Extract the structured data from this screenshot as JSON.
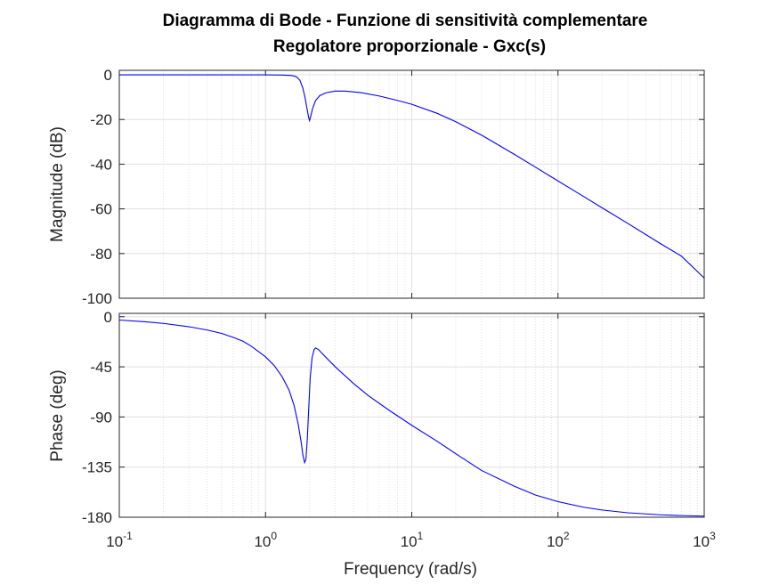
{
  "chart_data": {
    "type": "line",
    "title_line1": "Diagramma di Bode - Funzione di sensitività complementare",
    "title_line2": "Regolatore proporzionale - Gxc(s)",
    "xlabel": "Frequency  (rad/s)",
    "x_scale": "log",
    "xlim": [
      0.1,
      1000
    ],
    "x_ticks": [
      {
        "base": "10",
        "exp": "-1",
        "value": 0.1
      },
      {
        "base": "10",
        "exp": "0",
        "value": 1
      },
      {
        "base": "10",
        "exp": "1",
        "value": 10
      },
      {
        "base": "10",
        "exp": "2",
        "value": 100
      },
      {
        "base": "10",
        "exp": "3",
        "value": 1000
      }
    ],
    "grid": true,
    "line_color": "#0000ff",
    "magnitude": {
      "ylabel": "Magnitude (dB)",
      "ylim": [
        -100,
        2
      ],
      "y_ticks": [
        "0",
        "-20",
        "-40",
        "-60",
        "-80",
        "-100"
      ],
      "y_tick_values": [
        0,
        -20,
        -40,
        -60,
        -80,
        -100
      ],
      "points": [
        [
          0.1,
          0
        ],
        [
          0.5,
          0
        ],
        [
          1.0,
          0
        ],
        [
          1.3,
          -0.1
        ],
        [
          1.5,
          -0.3
        ],
        [
          1.62,
          -0.8
        ],
        [
          1.72,
          -2.5
        ],
        [
          1.8,
          -6
        ],
        [
          1.86,
          -10
        ],
        [
          1.92,
          -15
        ],
        [
          1.97,
          -19
        ],
        [
          2.0,
          -20.5
        ],
        [
          2.03,
          -19
        ],
        [
          2.1,
          -15
        ],
        [
          2.2,
          -11.5
        ],
        [
          2.35,
          -9.3
        ],
        [
          2.6,
          -8
        ],
        [
          3.0,
          -7.3
        ],
        [
          3.5,
          -7.3
        ],
        [
          4.5,
          -8
        ],
        [
          6.0,
          -9.5
        ],
        [
          8.0,
          -11.5
        ],
        [
          10,
          -13.2
        ],
        [
          15,
          -17.3
        ],
        [
          20,
          -21
        ],
        [
          30,
          -27
        ],
        [
          50,
          -35.5
        ],
        [
          70,
          -41.3
        ],
        [
          100,
          -47.5
        ],
        [
          150,
          -54.5
        ],
        [
          200,
          -59.5
        ],
        [
          300,
          -66.5
        ],
        [
          500,
          -75.5
        ],
        [
          700,
          -81.2
        ],
        [
          1000,
          -91
        ]
      ]
    },
    "phase": {
      "ylabel": "Phase (deg)",
      "ylim": [
        -180,
        3
      ],
      "y_ticks": [
        "0",
        "-45",
        "-90",
        "-135",
        "-180"
      ],
      "y_tick_values": [
        0,
        -45,
        -90,
        -135,
        -180
      ],
      "points": [
        [
          0.1,
          -3
        ],
        [
          0.15,
          -4.5
        ],
        [
          0.2,
          -6
        ],
        [
          0.3,
          -9
        ],
        [
          0.4,
          -12
        ],
        [
          0.5,
          -15
        ],
        [
          0.6,
          -18.5
        ],
        [
          0.7,
          -22
        ],
        [
          0.8,
          -26.5
        ],
        [
          0.9,
          -31.5
        ],
        [
          1.0,
          -36
        ],
        [
          1.15,
          -44
        ],
        [
          1.3,
          -54
        ],
        [
          1.45,
          -66
        ],
        [
          1.57,
          -80
        ],
        [
          1.67,
          -96
        ],
        [
          1.75,
          -112
        ],
        [
          1.8,
          -124
        ],
        [
          1.85,
          -131
        ],
        [
          1.89,
          -128
        ],
        [
          1.93,
          -110
        ],
        [
          1.97,
          -85
        ],
        [
          2.02,
          -55
        ],
        [
          2.08,
          -37
        ],
        [
          2.15,
          -29.5
        ],
        [
          2.2,
          -28
        ],
        [
          2.3,
          -29.5
        ],
        [
          2.5,
          -34.5
        ],
        [
          3.0,
          -45
        ],
        [
          4.0,
          -60
        ],
        [
          5.0,
          -70.5
        ],
        [
          7.0,
          -84
        ],
        [
          10,
          -97.5
        ],
        [
          15,
          -112
        ],
        [
          20,
          -123
        ],
        [
          30,
          -138
        ],
        [
          50,
          -152
        ],
        [
          70,
          -160
        ],
        [
          100,
          -166
        ],
        [
          150,
          -171
        ],
        [
          200,
          -173.5
        ],
        [
          300,
          -176
        ],
        [
          500,
          -177.8
        ],
        [
          700,
          -178.5
        ],
        [
          1000,
          -179
        ]
      ]
    }
  }
}
